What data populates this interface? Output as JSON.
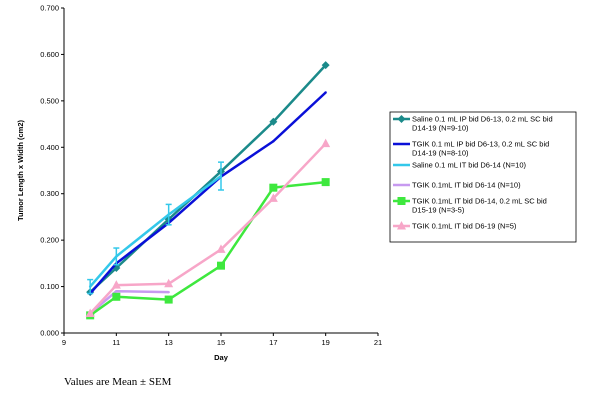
{
  "chart_data": {
    "type": "line",
    "title": "",
    "xlabel": "Day",
    "ylabel": "Tumor Length x Width (cm2)",
    "xlim": [
      9,
      21
    ],
    "ylim": [
      0,
      0.7
    ],
    "xticks": [
      "9",
      "11",
      "13",
      "15",
      "17",
      "19",
      "21"
    ],
    "yticks": [
      "0.000",
      "0.100",
      "0.200",
      "0.300",
      "0.400",
      "0.500",
      "0.600",
      "0.700"
    ],
    "legend_position": "right",
    "series": [
      {
        "name": "Saline 0.1 mL IP bid D6-13, 0.2 mL SC bid D14-19 (N=9-10)",
        "legend_lines": [
          "Saline 0.1 mL IP bid D6-13, 0.2 mL SC bid",
          "D14-19 (N=9-10)"
        ],
        "color": "#1b8a8a",
        "marker": "diamond",
        "x": [
          10,
          11,
          13,
          15,
          17,
          19
        ],
        "y": [
          0.088,
          0.14,
          0.245,
          0.348,
          0.455,
          0.577
        ],
        "err": [
          0,
          0,
          0,
          0,
          0,
          0
        ]
      },
      {
        "name": "TGIK 0.1 mL IP bid D6-13, 0.2 mL SC bid D14-19 (N=8-10)",
        "legend_lines": [
          "TGIK 0.1 mL IP bid D6-13, 0.2 mL SC bid",
          "D14-19 (N=8-10)"
        ],
        "color": "#0a10d8",
        "marker": "none",
        "x": [
          10,
          11,
          13,
          15,
          17,
          19
        ],
        "y": [
          0.085,
          0.15,
          0.237,
          0.337,
          0.413,
          0.518
        ],
        "err": [
          0,
          0,
          0,
          0,
          0,
          0
        ]
      },
      {
        "name": "Saline 0.1 mL IT bid D6-14 (N=10)",
        "legend_lines": [
          "Saline 0.1 mL IT bid D6-14 (N=10)"
        ],
        "color": "#33c8ea",
        "marker": "none",
        "x": [
          10,
          11,
          13,
          15
        ],
        "y": [
          0.1,
          0.165,
          0.255,
          0.338
        ],
        "err": [
          0.015,
          0.018,
          0.022,
          0.03
        ]
      },
      {
        "name": "TGIK 0.1mL IT bid D6-14 (N=10)",
        "legend_lines": [
          "TGIK 0.1mL IT bid D6-14 (N=10)"
        ],
        "color": "#c79af0",
        "marker": "none",
        "x": [
          10,
          11,
          13
        ],
        "y": [
          0.042,
          0.09,
          0.088
        ],
        "err": [
          0,
          0,
          0
        ]
      },
      {
        "name": "TGIK 0.1mL IT bid D6-14, 0.2 mL SC bid D15-19 (N=3-5)",
        "legend_lines": [
          "TGIK 0.1mL IT bid D6-14, 0.2 mL SC bid",
          "D15-19 (N=3-5)"
        ],
        "color": "#3ee83e",
        "marker": "square",
        "x": [
          10,
          11,
          13,
          15,
          17,
          19
        ],
        "y": [
          0.038,
          0.078,
          0.072,
          0.145,
          0.313,
          0.325
        ],
        "err": [
          0,
          0,
          0,
          0,
          0,
          0
        ]
      },
      {
        "name": "TGIK 0.1mL IT bid D6-19 (N=5)",
        "legend_lines": [
          "TGIK 0.1mL IT bid D6-19 (N=5)"
        ],
        "color": "#f7a6c8",
        "marker": "triangle",
        "x": [
          10,
          11,
          13,
          15,
          17,
          19
        ],
        "y": [
          0.042,
          0.103,
          0.106,
          0.18,
          0.29,
          0.408
        ],
        "err": [
          0,
          0,
          0,
          0,
          0,
          0
        ]
      }
    ],
    "annotations": [
      "Values are Mean ± SEM"
    ]
  }
}
